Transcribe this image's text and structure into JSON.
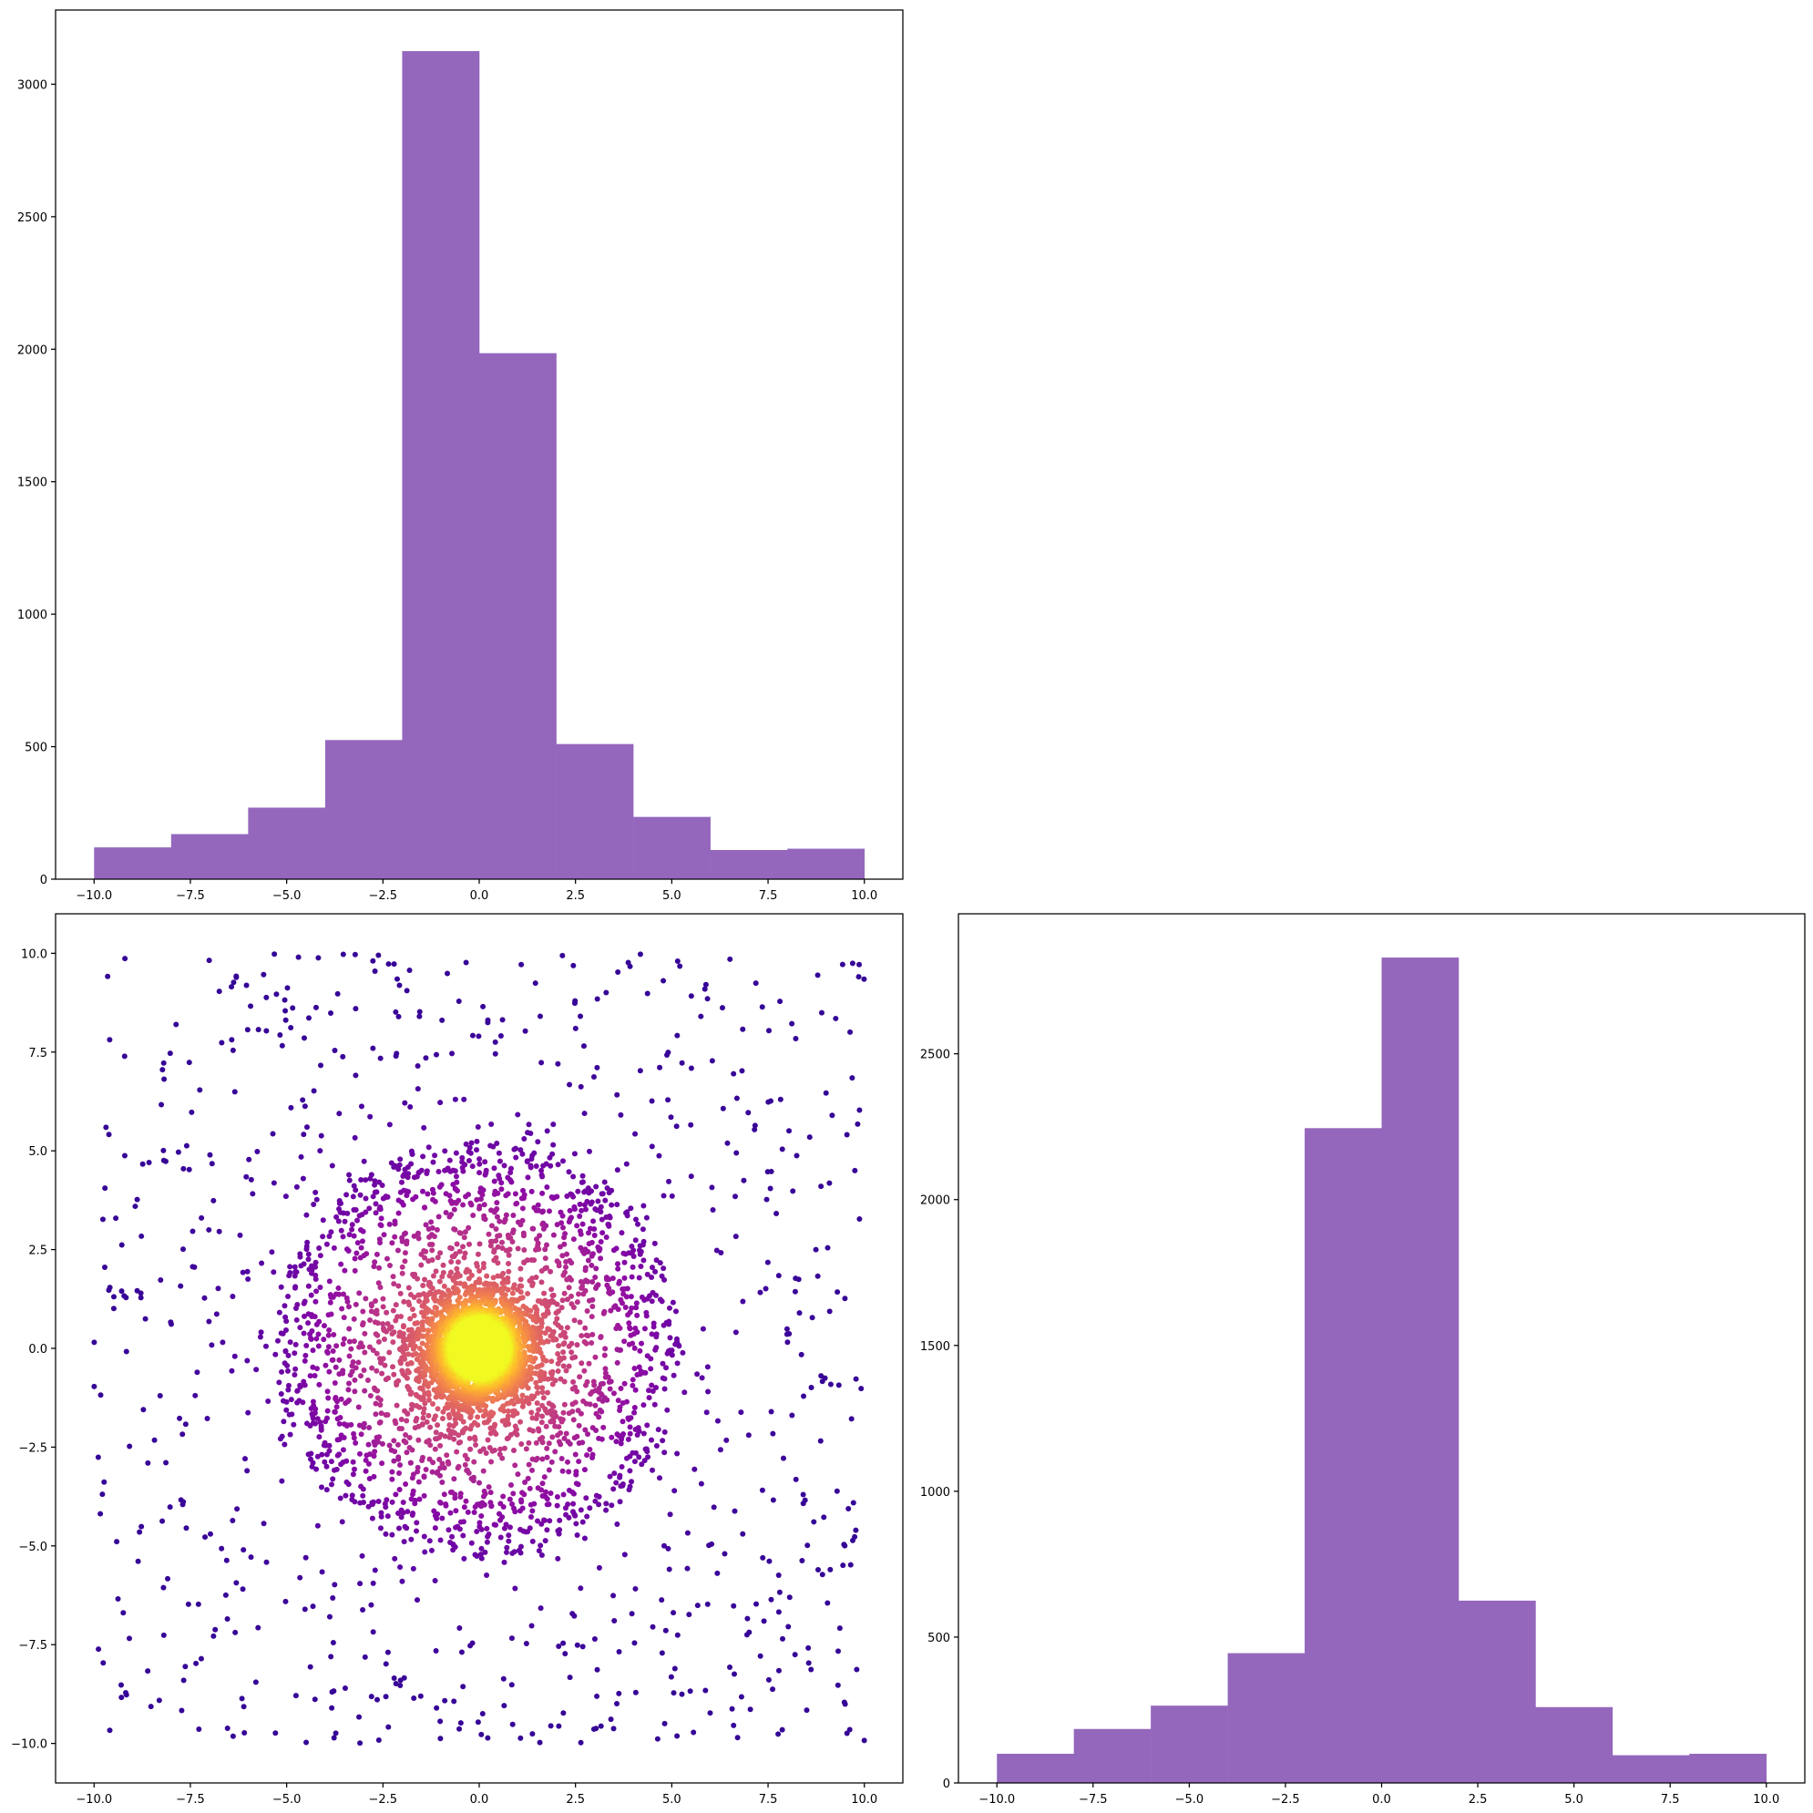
{
  "figure": {
    "layout": "corner-plot-2x2",
    "background": "#ffffff",
    "empty_panel": "top-right"
  },
  "colors": {
    "histogram_fill": "#9467bd",
    "scatter_colormap": "plasma"
  },
  "chart_data": [
    {
      "id": "hist_x",
      "panel": "top-left",
      "type": "bar",
      "title": "",
      "xlabel": "",
      "ylabel": "",
      "bin_edges": [
        -10,
        -8,
        -6,
        -4,
        -2,
        0,
        2,
        4,
        6,
        8,
        10
      ],
      "values": [
        120,
        170,
        270,
        525,
        3125,
        1985,
        510,
        235,
        110,
        115
      ],
      "xlim": [
        -11,
        11
      ],
      "ylim": [
        0,
        3280
      ],
      "xticks": [
        -10,
        -7.5,
        -5,
        -2.5,
        0,
        2.5,
        5,
        7.5,
        10
      ],
      "xtick_labels": [
        "−10.0",
        "−7.5",
        "−5.0",
        "−2.5",
        "0.0",
        "2.5",
        "5.0",
        "7.5",
        "10.0"
      ],
      "yticks": [
        0,
        500,
        1000,
        1500,
        2000,
        2500,
        3000
      ],
      "ytick_labels": [
        "0",
        "500",
        "1000",
        "1500",
        "2000",
        "2500",
        "3000"
      ],
      "grid": false,
      "legend": "none"
    },
    {
      "id": "scatter_xy",
      "panel": "bottom-left",
      "type": "scatter",
      "title": "",
      "xlabel": "",
      "ylabel": "",
      "description_of_distribution": {
        "center": [
          0,
          0
        ],
        "dense_core_radius": 1,
        "mid_ring_radius": 5,
        "uniform_background_extent": [
          -10,
          10
        ],
        "colored_by": "local density (plasma colormap, dark purple = low, yellow = high)"
      },
      "xlim": [
        -11,
        11
      ],
      "ylim": [
        -11,
        11
      ],
      "xticks": [
        -10,
        -7.5,
        -5,
        -2.5,
        0,
        2.5,
        5,
        7.5,
        10
      ],
      "xtick_labels": [
        "−10.0",
        "−7.5",
        "−5.0",
        "−2.5",
        "0.0",
        "2.5",
        "5.0",
        "7.5",
        "10.0"
      ],
      "yticks": [
        -10,
        -7.5,
        -5,
        -2.5,
        0,
        2.5,
        5,
        7.5,
        10
      ],
      "ytick_labels": [
        "−10.0",
        "−7.5",
        "−5.0",
        "−2.5",
        "0.0",
        "2.5",
        "5.0",
        "7.5",
        "10.0"
      ],
      "grid": false,
      "legend": "none"
    },
    {
      "id": "hist_y",
      "panel": "bottom-right",
      "type": "bar",
      "title": "",
      "xlabel": "",
      "ylabel": "",
      "bin_edges": [
        -10,
        -8,
        -6,
        -4,
        -2,
        0,
        2,
        4,
        6,
        8,
        10
      ],
      "values": [
        100,
        185,
        265,
        445,
        2245,
        2830,
        625,
        260,
        95,
        100
      ],
      "xlim": [
        -11,
        11
      ],
      "ylim": [
        0,
        2980
      ],
      "xticks": [
        -10,
        -7.5,
        -5,
        -2.5,
        0,
        2.5,
        5,
        7.5,
        10
      ],
      "xtick_labels": [
        "−10.0",
        "−7.5",
        "−5.0",
        "−2.5",
        "0.0",
        "2.5",
        "5.0",
        "7.5",
        "10.0"
      ],
      "yticks": [
        0,
        500,
        1000,
        1500,
        2000,
        2500
      ],
      "ytick_labels": [
        "0",
        "500",
        "1000",
        "1500",
        "2000",
        "2500"
      ],
      "grid": false,
      "legend": "none"
    }
  ]
}
